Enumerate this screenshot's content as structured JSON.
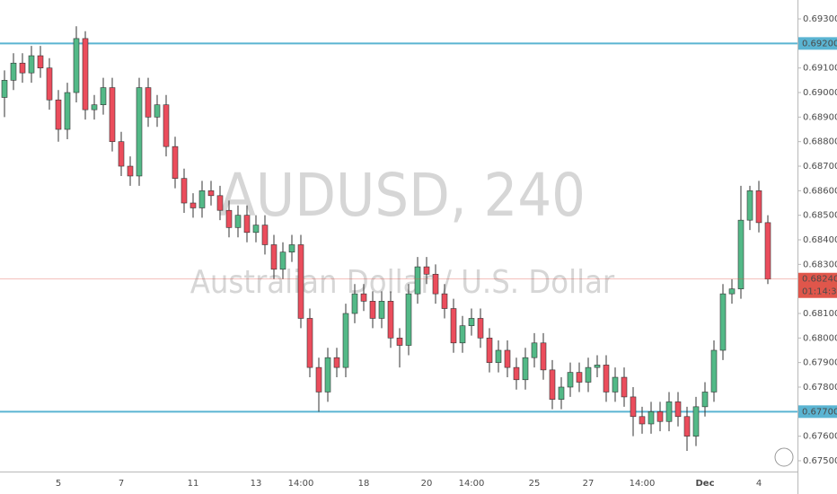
{
  "chart_data": {
    "type": "candlestick",
    "title": "AUDUSD, 240",
    "subtitle": "Australian Dollar / U.S. Dollar",
    "categories": [
      null,
      null,
      null,
      null,
      null,
      null,
      "5",
      null,
      null,
      null,
      null,
      null,
      null,
      "7",
      null,
      null,
      null,
      null,
      null,
      null,
      null,
      "11",
      null,
      null,
      null,
      null,
      null,
      null,
      "13",
      null,
      null,
      null,
      null,
      "14:00",
      null,
      null,
      null,
      null,
      null,
      null,
      "18",
      null,
      null,
      null,
      null,
      null,
      null,
      "20",
      null,
      null,
      null,
      null,
      "14:00",
      null,
      null,
      null,
      null,
      null,
      null,
      "25",
      null,
      null,
      null,
      null,
      null,
      "27",
      null,
      null,
      null,
      null,
      null,
      "14:00",
      null,
      null,
      null,
      null,
      null,
      null,
      "Dec",
      null,
      null,
      null,
      null,
      null,
      "4",
      null
    ],
    "open": [
      0.6898,
      0.6905,
      0.6912,
      0.6908,
      0.6915,
      0.691,
      0.6897,
      0.6885,
      0.69,
      0.6922,
      0.6893,
      0.6895,
      0.6902,
      0.688,
      0.687,
      0.6866,
      0.6902,
      0.689,
      0.6895,
      0.6878,
      0.6865,
      0.6855,
      0.6853,
      0.686,
      0.6858,
      0.6852,
      0.6845,
      0.685,
      0.6843,
      0.6846,
      0.6838,
      0.6828,
      0.6835,
      0.6838,
      0.6808,
      0.6788,
      0.6778,
      0.6792,
      0.6788,
      0.681,
      0.6818,
      0.6815,
      0.6808,
      0.6815,
      0.68,
      0.6797,
      0.6818,
      0.6829,
      0.6826,
      0.6818,
      0.6812,
      0.6798,
      0.6805,
      0.6808,
      0.68,
      0.679,
      0.6795,
      0.6788,
      0.6783,
      0.6792,
      0.6798,
      0.6787,
      0.6775,
      0.678,
      0.6786,
      0.6782,
      0.6788,
      0.6789,
      0.6778,
      0.6784,
      0.6776,
      0.6768,
      0.6765,
      0.677,
      0.6766,
      0.6774,
      0.6768,
      0.676,
      0.6772,
      0.6778,
      0.6795,
      0.6818,
      0.682,
      0.6848,
      0.686,
      0.6847
    ],
    "high": [
      0.6909,
      0.6916,
      0.6916,
      0.6919,
      0.6919,
      0.6914,
      0.6901,
      0.6904,
      0.6927,
      0.6925,
      0.6899,
      0.6906,
      0.6906,
      0.6884,
      0.6874,
      0.6906,
      0.6906,
      0.6899,
      0.6899,
      0.6882,
      0.6869,
      0.6859,
      0.6864,
      0.6864,
      0.6862,
      0.6856,
      0.6854,
      0.6854,
      0.685,
      0.685,
      0.6842,
      0.6839,
      0.6842,
      0.6842,
      0.6812,
      0.6792,
      0.6796,
      0.6796,
      0.6814,
      0.6822,
      0.6822,
      0.6819,
      0.6819,
      0.6819,
      0.6804,
      0.6822,
      0.6833,
      0.6833,
      0.683,
      0.6822,
      0.6816,
      0.6809,
      0.6812,
      0.6812,
      0.6804,
      0.6799,
      0.6799,
      0.6792,
      0.6796,
      0.6802,
      0.6802,
      0.6791,
      0.6784,
      0.679,
      0.679,
      0.6792,
      0.6793,
      0.6793,
      0.6788,
      0.6788,
      0.678,
      0.6772,
      0.6774,
      0.6774,
      0.6778,
      0.6778,
      0.6772,
      0.6776,
      0.6782,
      0.6799,
      0.6822,
      0.6824,
      0.6862,
      0.6862,
      0.6864,
      0.685
    ],
    "low": [
      0.689,
      0.6901,
      0.6904,
      0.6904,
      0.6906,
      0.6893,
      0.688,
      0.6881,
      0.6896,
      0.6889,
      0.6889,
      0.6891,
      0.6876,
      0.6866,
      0.6862,
      0.6862,
      0.6886,
      0.6886,
      0.6874,
      0.6861,
      0.6851,
      0.6849,
      0.6849,
      0.6854,
      0.6848,
      0.6841,
      0.6841,
      0.6839,
      0.6839,
      0.6834,
      0.6824,
      0.6824,
      0.6831,
      0.6804,
      0.6784,
      0.677,
      0.6774,
      0.6784,
      0.6784,
      0.6806,
      0.6811,
      0.6804,
      0.6804,
      0.6796,
      0.6788,
      0.6793,
      0.6814,
      0.6822,
      0.6814,
      0.6808,
      0.6794,
      0.6794,
      0.6801,
      0.6796,
      0.6786,
      0.6786,
      0.6784,
      0.6779,
      0.6779,
      0.6788,
      0.6783,
      0.6771,
      0.6771,
      0.6776,
      0.6778,
      0.6778,
      0.6784,
      0.6774,
      0.6774,
      0.6772,
      0.676,
      0.6761,
      0.6761,
      0.6762,
      0.6762,
      0.6764,
      0.6754,
      0.6756,
      0.6768,
      0.6774,
      0.6791,
      0.6814,
      0.6816,
      0.6844,
      0.6843,
      0.6822
    ],
    "close": [
      0.6905,
      0.6912,
      0.6908,
      0.6915,
      0.691,
      0.6897,
      0.6885,
      0.69,
      0.6922,
      0.6893,
      0.6895,
      0.6902,
      0.688,
      0.687,
      0.6866,
      0.6902,
      0.689,
      0.6895,
      0.6878,
      0.6865,
      0.6855,
      0.6853,
      0.686,
      0.6858,
      0.6852,
      0.6845,
      0.685,
      0.6843,
      0.6846,
      0.6838,
      0.6828,
      0.6835,
      0.6838,
      0.6808,
      0.6788,
      0.6778,
      0.6792,
      0.6788,
      0.681,
      0.6818,
      0.6815,
      0.6808,
      0.6815,
      0.68,
      0.6797,
      0.6818,
      0.6829,
      0.6826,
      0.6818,
      0.6812,
      0.6798,
      0.6805,
      0.6808,
      0.68,
      0.679,
      0.6795,
      0.6788,
      0.6783,
      0.6792,
      0.6798,
      0.6787,
      0.6775,
      0.678,
      0.6786,
      0.6782,
      0.6788,
      0.6789,
      0.6778,
      0.6784,
      0.6776,
      0.6768,
      0.6765,
      0.677,
      0.6766,
      0.6774,
      0.6768,
      0.676,
      0.6772,
      0.6778,
      0.6795,
      0.6818,
      0.682,
      0.6848,
      0.686,
      0.6847,
      0.6824
    ],
    "up_color": "#53b987",
    "down_color": "#eb4d5c",
    "ylim": [
      0.67456,
      0.69377
    ],
    "yticks": [
      {
        "value": 0.675,
        "label": "0.67500"
      },
      {
        "value": 0.676,
        "label": "0.67600"
      },
      {
        "value": 0.677,
        "label": "0.67700"
      },
      {
        "value": 0.678,
        "label": "0.67800"
      },
      {
        "value": 0.679,
        "label": "0.67900"
      },
      {
        "value": 0.68,
        "label": "0.68000"
      },
      {
        "value": 0.681,
        "label": "0.68100"
      },
      {
        "value": 0.682,
        "label": "0.68200"
      },
      {
        "value": 0.683,
        "label": "0.68300"
      },
      {
        "value": 0.684,
        "label": "0.68400"
      },
      {
        "value": 0.685,
        "label": "0.68500"
      },
      {
        "value": 0.686,
        "label": "0.68600"
      },
      {
        "value": 0.687,
        "label": "0.68700"
      },
      {
        "value": 0.688,
        "label": "0.68800"
      },
      {
        "value": 0.689,
        "label": "0.68900"
      },
      {
        "value": 0.69,
        "label": "0.69000"
      },
      {
        "value": 0.691,
        "label": "0.69100"
      },
      {
        "value": 0.692,
        "label": "0.69200"
      },
      {
        "value": 0.693,
        "label": "0.69300"
      }
    ],
    "hlines": [
      {
        "value": 0.692,
        "label": "0.69200",
        "color": "#5ab4d2"
      },
      {
        "value": 0.677,
        "label": "0.67700",
        "color": "#5ab4d2"
      }
    ],
    "last_price": {
      "value": 0.6824,
      "label": "0.68240",
      "color": "#e0564b",
      "countdown": "01:14:36"
    }
  }
}
